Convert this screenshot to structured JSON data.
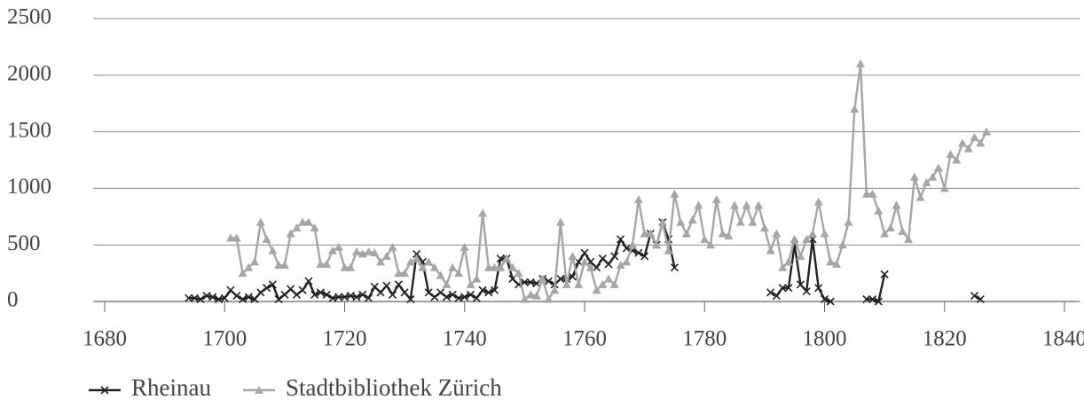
{
  "chart_data": {
    "type": "line",
    "x": [
      1694,
      1695,
      1696,
      1697,
      1698,
      1699,
      1700,
      1701,
      1702,
      1703,
      1704,
      1705,
      1706,
      1707,
      1708,
      1709,
      1710,
      1711,
      1712,
      1713,
      1714,
      1715,
      1716,
      1717,
      1718,
      1719,
      1720,
      1721,
      1722,
      1723,
      1724,
      1725,
      1726,
      1727,
      1728,
      1729,
      1730,
      1731,
      1732,
      1733,
      1734,
      1735,
      1736,
      1737,
      1738,
      1739,
      1740,
      1741,
      1742,
      1743,
      1744,
      1745,
      1746,
      1747,
      1748,
      1749,
      1750,
      1751,
      1752,
      1753,
      1754,
      1755,
      1756,
      1757,
      1758,
      1759,
      1760,
      1761,
      1762,
      1763,
      1764,
      1765,
      1766,
      1767,
      1768,
      1769,
      1770,
      1771,
      1772,
      1773,
      1774,
      1775,
      1776,
      1777,
      1778,
      1779,
      1780,
      1781,
      1782,
      1783,
      1784,
      1785,
      1786,
      1787,
      1788,
      1789,
      1790,
      1791,
      1792,
      1793,
      1794,
      1795,
      1796,
      1797,
      1798,
      1799,
      1800,
      1801,
      1802,
      1803,
      1804,
      1805,
      1806,
      1807,
      1808,
      1809,
      1810,
      1811,
      1812,
      1813,
      1814,
      1815,
      1816,
      1817,
      1818,
      1819,
      1820,
      1821,
      1822,
      1823,
      1824,
      1825,
      1826,
      1827
    ],
    "series": [
      {
        "name": "Rheinau",
        "color": "#222222",
        "values": [
          30,
          30,
          20,
          50,
          40,
          20,
          30,
          100,
          50,
          20,
          40,
          20,
          80,
          120,
          150,
          20,
          60,
          110,
          60,
          100,
          180,
          60,
          80,
          60,
          30,
          40,
          40,
          50,
          40,
          60,
          30,
          130,
          80,
          140,
          60,
          150,
          80,
          20,
          420,
          350,
          80,
          40,
          80,
          40,
          60,
          30,
          40,
          60,
          30,
          100,
          80,
          100,
          380,
          380,
          200,
          150,
          170,
          170,
          160,
          200,
          180,
          150,
          200,
          200,
          220,
          350,
          430,
          350,
          300,
          380,
          330,
          400,
          550,
          470,
          450,
          430,
          400,
          600,
          500,
          700,
          550,
          300,
          null,
          null,
          null,
          null,
          null,
          null,
          null,
          null,
          null,
          null,
          null,
          null,
          null,
          null,
          null,
          80,
          50,
          120,
          120,
          500,
          150,
          90,
          550,
          120,
          20,
          0,
          null,
          null,
          null,
          null,
          null,
          20,
          20,
          0,
          240,
          null,
          null,
          null,
          null,
          null,
          null,
          null,
          null,
          null,
          null,
          null,
          null,
          null,
          null,
          50,
          20,
          null
        ]
      },
      {
        "name": "Stadtbibliothek Zürich",
        "color": "#a6a6a6",
        "values": [
          null,
          null,
          null,
          null,
          null,
          null,
          null,
          560,
          560,
          250,
          300,
          350,
          700,
          550,
          450,
          320,
          320,
          600,
          650,
          700,
          700,
          650,
          330,
          330,
          450,
          480,
          300,
          300,
          440,
          420,
          440,
          430,
          350,
          400,
          480,
          250,
          250,
          350,
          380,
          300,
          350,
          300,
          230,
          150,
          300,
          250,
          480,
          150,
          200,
          780,
          300,
          300,
          300,
          380,
          300,
          250,
          20,
          60,
          50,
          200,
          20,
          100,
          700,
          150,
          400,
          150,
          350,
          300,
          100,
          150,
          200,
          150,
          320,
          350,
          500,
          900,
          600,
          600,
          500,
          700,
          450,
          950,
          700,
          600,
          720,
          850,
          550,
          500,
          900,
          600,
          580,
          850,
          700,
          850,
          700,
          850,
          650,
          450,
          600,
          300,
          350,
          550,
          400,
          550,
          600,
          880,
          600,
          350,
          330,
          500,
          700,
          1700,
          2100,
          950,
          950,
          800,
          600,
          650,
          850,
          620,
          550,
          1100,
          920,
          1050,
          1100,
          1180,
          1000,
          1300,
          1250,
          1400,
          1350,
          1450,
          1400,
          1500
        ]
      }
    ],
    "xlim": [
      1680,
      1840
    ],
    "xticks": [
      1680,
      1700,
      1720,
      1740,
      1760,
      1780,
      1800,
      1820,
      1840
    ],
    "ylim": [
      0,
      2500
    ],
    "yticks": [
      0,
      500,
      1000,
      1500,
      2000,
      2500
    ],
    "grid": true,
    "legend": "bottom"
  }
}
